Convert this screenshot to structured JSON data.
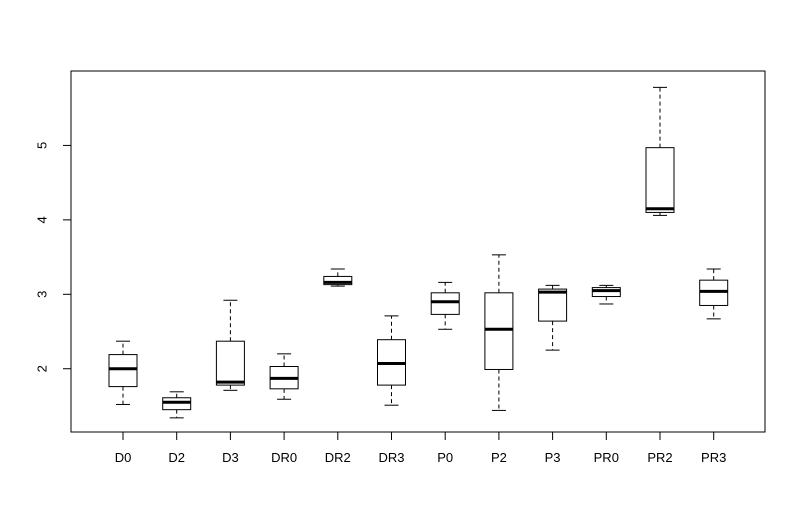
{
  "chart_data": {
    "type": "boxplot",
    "title": "",
    "xlabel": "",
    "ylabel": "",
    "ylim": [
      1.15,
      6.0
    ],
    "yticks": [
      2,
      3,
      4,
      5
    ],
    "ytick_labels": [
      "2",
      "3",
      "4",
      "5"
    ],
    "categories": [
      "D0",
      "D2",
      "D3",
      "DR0",
      "DR2",
      "DR3",
      "P0",
      "P2",
      "P3",
      "PR0",
      "PR2",
      "PR3"
    ],
    "boxes": [
      {
        "label": "D0",
        "whisker_low": 1.52,
        "q1": 1.76,
        "median": 2.0,
        "q3": 2.19,
        "whisker_high": 2.37
      },
      {
        "label": "D2",
        "whisker_low": 1.34,
        "q1": 1.45,
        "median": 1.55,
        "q3": 1.61,
        "whisker_high": 1.69
      },
      {
        "label": "D3",
        "whisker_low": 1.71,
        "q1": 1.78,
        "median": 1.82,
        "q3": 2.37,
        "whisker_high": 2.92
      },
      {
        "label": "DR0",
        "whisker_low": 1.59,
        "q1": 1.73,
        "median": 1.87,
        "q3": 2.03,
        "whisker_high": 2.2
      },
      {
        "label": "DR2",
        "whisker_low": 3.11,
        "q1": 3.13,
        "median": 3.16,
        "q3": 3.24,
        "whisker_high": 3.34
      },
      {
        "label": "DR3",
        "whisker_low": 1.51,
        "q1": 1.78,
        "median": 2.07,
        "q3": 2.39,
        "whisker_high": 2.71
      },
      {
        "label": "P0",
        "whisker_low": 2.53,
        "q1": 2.73,
        "median": 2.9,
        "q3": 3.02,
        "whisker_high": 3.16
      },
      {
        "label": "P2",
        "whisker_low": 1.44,
        "q1": 1.99,
        "median": 2.53,
        "q3": 3.02,
        "whisker_high": 3.53
      },
      {
        "label": "P3",
        "whisker_low": 2.25,
        "q1": 2.64,
        "median": 3.03,
        "q3": 3.07,
        "whisker_high": 3.12
      },
      {
        "label": "PR0",
        "whisker_low": 2.87,
        "q1": 2.97,
        "median": 3.05,
        "q3": 3.09,
        "whisker_high": 3.12
      },
      {
        "label": "PR2",
        "whisker_low": 4.06,
        "q1": 4.1,
        "median": 4.15,
        "q3": 4.97,
        "whisker_high": 5.78
      },
      {
        "label": "PR3",
        "whisker_low": 2.67,
        "q1": 2.85,
        "median": 3.04,
        "q3": 3.19,
        "whisker_high": 3.34
      }
    ],
    "grid": false,
    "legend": "none"
  }
}
